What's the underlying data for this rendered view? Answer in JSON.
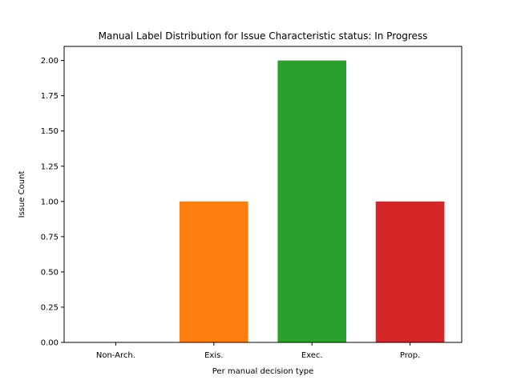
{
  "chart_data": {
    "type": "bar",
    "title": "Manual Label Distribution for Issue Characteristic status: In Progress",
    "xlabel": "Per manual decision type",
    "ylabel": "Issue Count",
    "categories": [
      "Non-Arch.",
      "Exis.",
      "Exec.",
      "Prop."
    ],
    "values": [
      0,
      1,
      2,
      1
    ],
    "colors": [
      "#1f77b4",
      "#ff7f0e",
      "#2ca02c",
      "#d62728"
    ],
    "ylim": [
      0,
      2.1
    ],
    "yticks": [
      "0.00",
      "0.25",
      "0.50",
      "0.75",
      "1.00",
      "1.25",
      "1.50",
      "1.75",
      "2.00"
    ],
    "grid": false,
    "legend": "none"
  }
}
